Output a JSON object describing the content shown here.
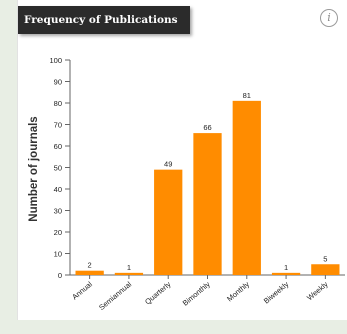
{
  "card": {
    "title": "Frequency of Publications",
    "info_icon": "info-icon"
  },
  "colors": {
    "bar": "#ff8c00",
    "axis": "#666666",
    "grid": "#e6e6e6",
    "text": "#222222",
    "title_bg": "#2b2b2b"
  },
  "chart_data": {
    "type": "bar",
    "title": "Frequency of Publications",
    "xlabel": "",
    "ylabel": "Number of journals",
    "categories": [
      "Annual",
      "Semiannual",
      "Quarterly",
      "Bimonthly",
      "Monthly",
      "Biweekly",
      "Weekly"
    ],
    "values": [
      2,
      1,
      49,
      66,
      81,
      1,
      5
    ],
    "data_labels": [
      "2",
      "1",
      "49",
      "66",
      "81",
      "1",
      "5"
    ],
    "ylim": [
      0,
      100
    ],
    "yticks": [
      "0",
      "10",
      "20",
      "30",
      "40",
      "50",
      "60",
      "70",
      "80",
      "90",
      "100"
    ],
    "grid": false,
    "legend": "none"
  }
}
